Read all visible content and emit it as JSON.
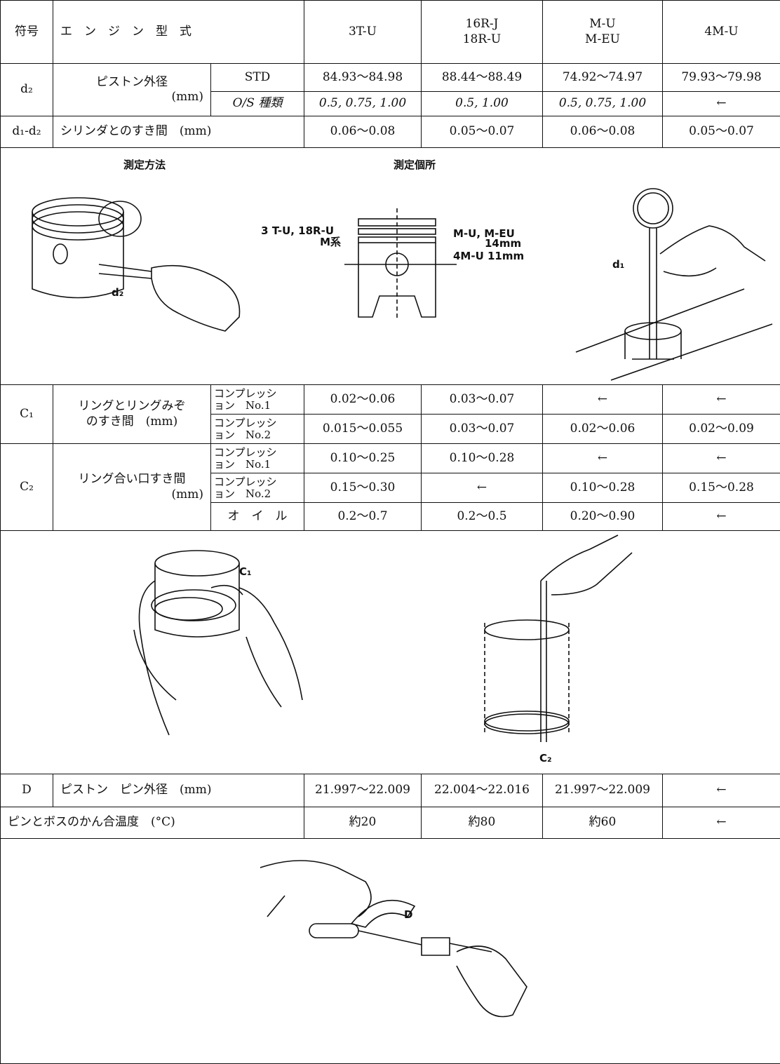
{
  "table": {
    "header": {
      "symbol": "符号",
      "engine_type": "エ　ン　ジ　ン　型　式",
      "models": [
        [
          "3T-U"
        ],
        [
          "16R-J",
          "18R-U"
        ],
        [
          "M-U",
          "M-EU"
        ],
        [
          "4M-U"
        ]
      ]
    },
    "piston_diameter": {
      "symbol": "d₂",
      "item": "ピストン外径",
      "unit": "(mm)",
      "rows": [
        {
          "label": "STD",
          "values": [
            "84.93〜84.98",
            "88.44〜88.49",
            "74.92〜74.97",
            "79.93〜79.98"
          ]
        },
        {
          "label": "O/S 種類",
          "values": [
            "0.5, 0.75, 1.00",
            "0.5, 1.00",
            "0.5, 0.75, 1.00",
            "←"
          ]
        }
      ]
    },
    "cylinder_clearance": {
      "symbol": "d₁-d₂",
      "item": "シリンダとのすき間　(mm)",
      "values": [
        "0.06〜0.08",
        "0.05〜0.07",
        "0.06〜0.08",
        "0.05〜0.07"
      ]
    },
    "ring_groove_clearance": {
      "symbol": "C₁",
      "item": [
        "リングとリングみぞ",
        "のすき間　(mm)"
      ],
      "rows": [
        {
          "label": [
            "コンプレッシ",
            "ョン　No.1"
          ],
          "values": [
            "0.02〜0.06",
            "0.03〜0.07",
            "←",
            "←"
          ]
        },
        {
          "label": [
            "コンプレッシ",
            "ョン　No.2"
          ],
          "values": [
            "0.015〜0.055",
            "0.03〜0.07",
            "0.02〜0.06",
            "0.02〜0.09"
          ]
        }
      ]
    },
    "ring_end_gap": {
      "symbol": "C₂",
      "item": [
        "リング合い口すき間",
        "(mm)"
      ],
      "rows": [
        {
          "label": [
            "コンプレッシ",
            "ョン　No.1"
          ],
          "values": [
            "0.10〜0.25",
            "0.10〜0.28",
            "←",
            "←"
          ]
        },
        {
          "label": [
            "コンプレッシ",
            "ョン　No.2"
          ],
          "values": [
            "0.15〜0.30",
            "←",
            "0.10〜0.28",
            "0.15〜0.28"
          ]
        },
        {
          "label": [
            "オ　イ　ル"
          ],
          "values": [
            "0.2〜0.7",
            "0.2〜0.5",
            "0.20〜0.90",
            "←"
          ]
        }
      ]
    },
    "pin_diameter": {
      "symbol": "D",
      "item": "ピストン　ピン外径　(mm)",
      "values": [
        "21.997〜22.009",
        "22.004〜22.016",
        "21.997〜22.009",
        "←"
      ]
    },
    "fit_temperature": {
      "item": "ピンとボスのかん合温度　(°C)",
      "values": [
        "約20",
        "約80",
        "約60",
        "←"
      ]
    }
  },
  "figures": {
    "measurement": {
      "method_title": "測定方法",
      "location_title": "測定個所",
      "d2": "d₂",
      "d1": "d₁",
      "left_models": "3 T-U, 18R-U",
      "m_series": "M系",
      "right_models": "M-U, M-EU",
      "right_dim": "14mm",
      "bottom_dim": "4M-U 11mm"
    },
    "rings": {
      "c1": "C₁",
      "c2": "C₂"
    },
    "pin": {
      "d": "D"
    }
  }
}
